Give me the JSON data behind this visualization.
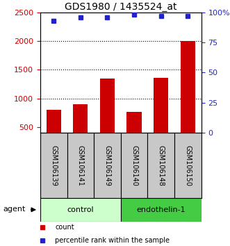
{
  "title": "GDS1980 / 1435524_at",
  "samples": [
    "GSM106139",
    "GSM106141",
    "GSM106149",
    "GSM106140",
    "GSM106148",
    "GSM106150"
  ],
  "counts": [
    800,
    900,
    1350,
    760,
    1360,
    2000
  ],
  "percentiles": [
    93,
    96,
    96,
    98,
    97,
    97
  ],
  "bar_color": "#cc0000",
  "dot_color": "#2222cc",
  "ylim_left": [
    400,
    2500
  ],
  "ylim_right": [
    0,
    100
  ],
  "yticks_left": [
    500,
    1000,
    1500,
    2000,
    2500
  ],
  "yticks_right": [
    0,
    25,
    50,
    75,
    100
  ],
  "grid_values": [
    1000,
    1500,
    2000
  ],
  "ylabel_left_color": "#cc0000",
  "ylabel_right_color": "#2222cc",
  "control_color": "#ccffcc",
  "endothelin_color": "#44cc44",
  "gray_color": "#c8c8c8",
  "legend_count": "count",
  "legend_percentile": "percentile rank within the sample"
}
